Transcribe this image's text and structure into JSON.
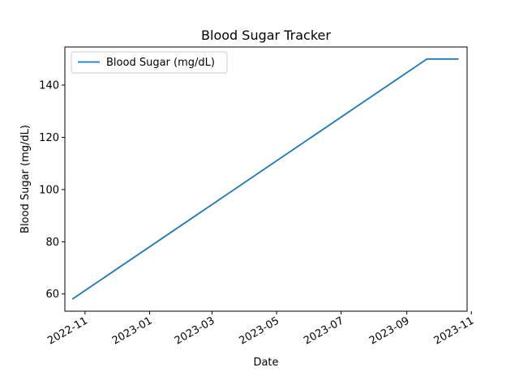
{
  "chart_data": {
    "type": "line",
    "title": "Blood Sugar Tracker",
    "xlabel": "Date",
    "ylabel": "Blood Sugar (mg/dL)",
    "x_axis_type": "date",
    "xlim": [
      "2022-10-13",
      "2023-10-28"
    ],
    "ylim": [
      53.4,
      154.6
    ],
    "x_ticks": [
      "2022-11",
      "2023-01",
      "2023-03",
      "2023-05",
      "2023-07",
      "2023-09",
      "2023-11"
    ],
    "y_ticks": [
      60,
      80,
      100,
      120,
      140
    ],
    "grid": false,
    "legend_position": "upper-left",
    "series": [
      {
        "name": "Blood Sugar (mg/dL)",
        "color": "#1f77b4",
        "x": [
          "2022-10-20",
          "2023-09-20",
          "2023-10-20"
        ],
        "y": [
          58,
          150,
          150
        ]
      }
    ]
  }
}
